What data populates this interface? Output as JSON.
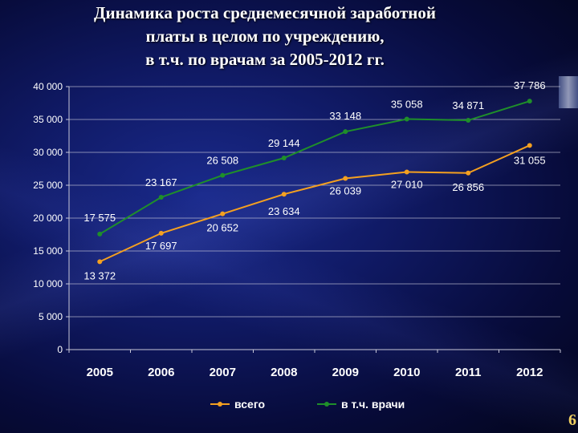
{
  "title_lines": [
    "Динамика роста среднемесячной заработной",
    "платы в целом по учреждению,",
    "в т.ч. по врачам за 2005-2012 гг."
  ],
  "page_number": "6",
  "colors": {
    "series_total": "#f4a020",
    "series_doctors": "#1f8f2a",
    "grid": "#c8c8d8",
    "text": "#ffffff"
  },
  "chart_data": {
    "type": "line",
    "title": "",
    "xlabel": "",
    "ylabel": "",
    "ylim": [
      0,
      40000
    ],
    "yticks": [
      0,
      5000,
      10000,
      15000,
      20000,
      25000,
      30000,
      35000,
      40000
    ],
    "ytick_labels": [
      "0",
      "5 000",
      "10 000",
      "15 000",
      "20 000",
      "25 000",
      "30 000",
      "35 000",
      "40 000"
    ],
    "grid": true,
    "legend_position": "bottom",
    "categories": [
      "2005",
      "2006",
      "2007",
      "2008",
      "2009",
      "2010",
      "2011",
      "2012"
    ],
    "series": [
      {
        "name": "всего",
        "values": [
          13372,
          17697,
          20652,
          23634,
          26039,
          27010,
          26856,
          31055
        ],
        "labels": [
          "13 372",
          "17 697",
          "20 652",
          "23 634",
          "26 039",
          "27 010",
          "26 856",
          "31 055"
        ]
      },
      {
        "name": "в т.ч. врачи",
        "values": [
          17575,
          23167,
          26508,
          29144,
          33148,
          35058,
          34871,
          37786
        ],
        "labels": [
          "17 575",
          "23 167",
          "26 508",
          "29 144",
          "33 148",
          "35 058",
          "34 871",
          "37 786"
        ]
      }
    ]
  }
}
